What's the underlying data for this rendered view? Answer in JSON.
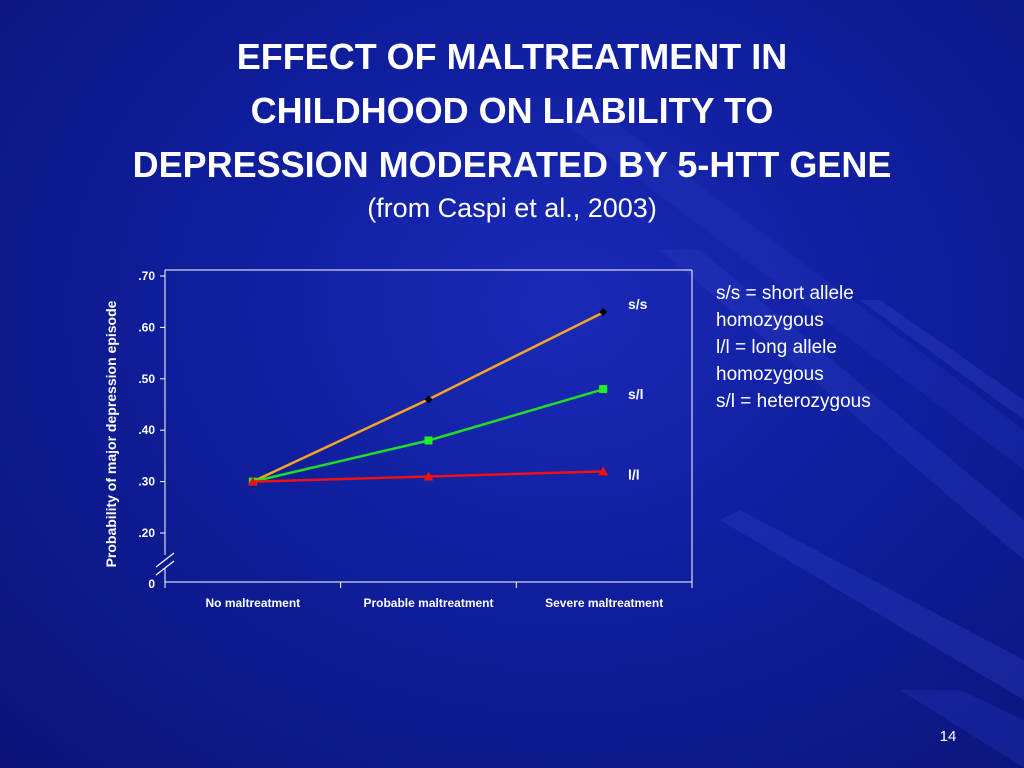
{
  "slide": {
    "title_lines": [
      "EFFECT OF MALTREATMENT IN",
      "CHILDHOOD ON LIABILITY TO",
      "DEPRESSION MODERATED BY 5-HTT GENE"
    ],
    "subtitle": "(from Caspi et al., 2003)",
    "notes": [
      "s/s = short allele",
      "homozygous",
      "l/l = long allele",
      "homozygous",
      "s/l = heterozygous"
    ],
    "page_number": "14"
  },
  "chart_data": {
    "type": "line",
    "ylabel": "Probability of major depression episode",
    "xlabel": "",
    "categories": [
      "No maltreatment",
      "Probable maltreatment",
      "Severe maltreatment"
    ],
    "y_ticks": [
      {
        "value": 0.7,
        "label": ".70"
      },
      {
        "value": 0.6,
        "label": ".60"
      },
      {
        "value": 0.5,
        "label": ".50"
      },
      {
        "value": 0.4,
        "label": ".40"
      },
      {
        "value": 0.3,
        "label": ".30"
      },
      {
        "value": 0.2,
        "label": ".20"
      }
    ],
    "y_zero_label": "0",
    "ylim": [
      0.0,
      0.7
    ],
    "axis_break": true,
    "grid": false,
    "series": [
      {
        "name": "s/s",
        "values": [
          0.3,
          0.46,
          0.63
        ],
        "color": "#f5a623",
        "marker": "diamond",
        "marker_color": "#000000"
      },
      {
        "name": "s/l",
        "values": [
          0.3,
          0.38,
          0.48
        ],
        "color": "#22dd22",
        "marker": "square",
        "marker_color": "#22ee22"
      },
      {
        "name": "l/l",
        "values": [
          0.3,
          0.31,
          0.32
        ],
        "color": "#ee1111",
        "marker": "triangle",
        "marker_color": "#ee1111"
      }
    ],
    "colors": {
      "axis": "#ffffff",
      "background": "#1222a8"
    }
  }
}
